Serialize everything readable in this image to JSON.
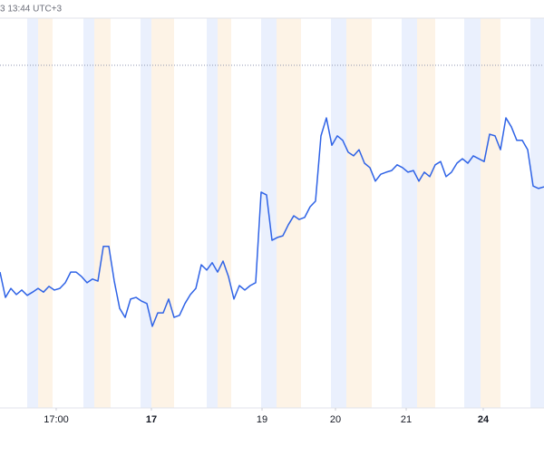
{
  "chart_data": {
    "type": "line",
    "header": "3 13:44 UTC+3",
    "x": [
      0,
      1,
      2,
      3,
      4,
      5,
      6,
      7,
      8,
      9,
      10,
      11,
      12,
      13,
      14,
      15,
      16,
      17,
      18,
      19,
      20,
      21,
      22,
      23,
      24,
      25,
      26,
      27,
      28,
      29,
      30,
      31,
      32,
      33,
      34,
      35,
      36,
      37,
      38,
      39,
      40,
      41,
      42,
      43,
      44,
      45,
      46,
      47,
      48,
      49,
      50,
      51,
      52,
      53,
      54,
      55,
      56,
      57,
      58,
      59,
      60,
      61,
      62,
      63,
      64,
      65,
      66,
      67,
      68,
      69,
      70,
      71,
      72,
      73,
      74,
      75,
      76,
      77,
      78,
      79,
      80,
      81,
      82,
      83,
      84,
      85,
      86,
      87,
      88,
      89,
      90,
      91,
      92,
      93,
      94,
      95,
      96,
      97,
      98,
      99,
      100
    ],
    "series": [
      {
        "color": "#2f63e6",
        "values": [
          33.3,
          27.1,
          29.3,
          27.8,
          28.9,
          27.6,
          28.4,
          29.3,
          28.4,
          29.8,
          28.9,
          29.3,
          30.7,
          33.3,
          33.3,
          32.2,
          30.7,
          31.6,
          31.1,
          39.6,
          39.6,
          31.1,
          24.4,
          22.2,
          26.7,
          27.1,
          26.2,
          25.6,
          20,
          23.3,
          23.3,
          26.7,
          22.2,
          22.7,
          25.6,
          27.8,
          29.3,
          35.1,
          33.8,
          35.6,
          33.3,
          36,
          32.2,
          26.7,
          30,
          28.9,
          30,
          30.7,
          52.9,
          52.2,
          41.1,
          41.8,
          42.2,
          44.9,
          47.1,
          46.2,
          46.7,
          49.3,
          50.7,
          66.7,
          71.1,
          64.4,
          66.7,
          65.6,
          62.7,
          61.8,
          63.3,
          60,
          58.9,
          55.6,
          57.3,
          57.8,
          58.2,
          59.6,
          58.9,
          57.8,
          58.2,
          55.6,
          57.8,
          56.7,
          59.6,
          60.4,
          56.7,
          57.8,
          60,
          61.1,
          60,
          61.8,
          61.1,
          60.4,
          67.1,
          66.7,
          63.3,
          71.1,
          68.9,
          65.6,
          65.6,
          63.3,
          54.4,
          53.8,
          54.2
        ]
      }
    ],
    "reference_line": 84,
    "xlim": [
      0,
      100
    ],
    "ylim": [
      0,
      100
    ],
    "xticks": [
      {
        "value": 10.33,
        "label": "17:00"
      },
      {
        "value": 27.83,
        "label": "17",
        "bold": true
      },
      {
        "value": 48.17,
        "label": "19"
      },
      {
        "value": 61.67,
        "label": "20"
      },
      {
        "value": 74.67,
        "label": "21"
      },
      {
        "value": 88.83,
        "label": "24",
        "bold": true
      }
    ]
  }
}
